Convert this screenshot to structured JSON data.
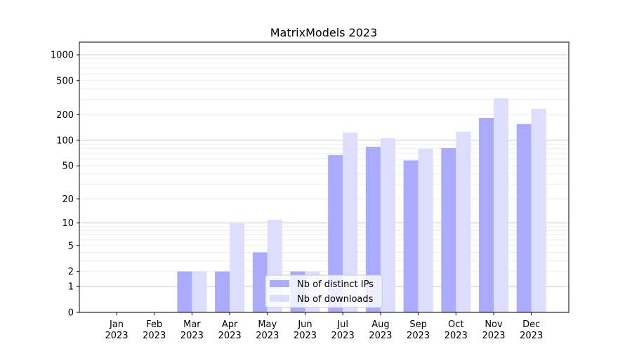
{
  "chart_data": {
    "type": "bar",
    "title": "MatrixModels 2023",
    "xlabel": "",
    "ylabel": "",
    "yscale": "symlog",
    "ylim": [
      0,
      1400
    ],
    "yticks": [
      0,
      1,
      2,
      5,
      10,
      20,
      50,
      100,
      200,
      500,
      1000
    ],
    "ytick_labels": [
      "0",
      "1",
      "2",
      "5",
      "10",
      "20",
      "50",
      "100",
      "200",
      "500",
      "1000"
    ],
    "grid": true,
    "legend_position": "lower-center",
    "categories": [
      "Jan\n2023",
      "Feb\n2023",
      "Mar\n2023",
      "Apr\n2023",
      "May\n2023",
      "Jun\n2023",
      "Jul\n2023",
      "Aug\n2023",
      "Sep\n2023",
      "Oct\n2023",
      "Nov\n2023",
      "Dec\n2023"
    ],
    "series": [
      {
        "name": "Nb of distinct IPs",
        "color": "#aaaaff",
        "values": [
          0,
          0,
          2,
          2,
          4,
          2,
          67,
          84,
          58,
          81,
          183,
          155
        ]
      },
      {
        "name": "Nb of downloads",
        "color": "#ddddff",
        "values": [
          0,
          0,
          2,
          10,
          11,
          2,
          123,
          106,
          80,
          126,
          311,
          234
        ]
      }
    ]
  }
}
